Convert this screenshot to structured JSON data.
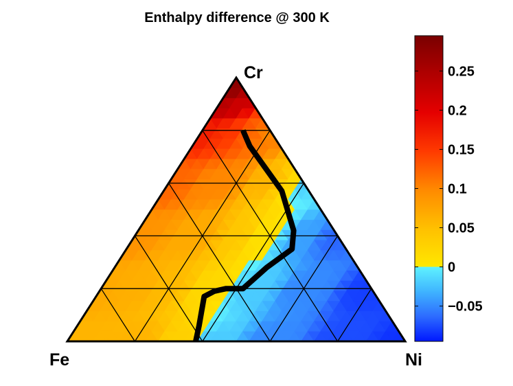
{
  "chart_data": {
    "type": "heatmap",
    "subtype": "ternary",
    "title": "Enthalpy difference @ 300 K",
    "vertices": {
      "left": "Fe",
      "right": "Ni",
      "top": "Cr"
    },
    "grid_fractions": [
      0.2,
      0.4,
      0.6,
      0.8
    ],
    "zero_contour": {
      "description": "thick black boundary where enthalpy difference = 0",
      "points_cr_ni": [
        [
          0.0,
          0.38
        ],
        [
          0.06,
          0.36
        ],
        [
          0.17,
          0.32
        ],
        [
          0.19,
          0.34
        ],
        [
          0.2,
          0.37
        ],
        [
          0.2,
          0.42
        ],
        [
          0.28,
          0.45
        ],
        [
          0.35,
          0.49
        ],
        [
          0.42,
          0.46
        ],
        [
          0.57,
          0.35
        ],
        [
          0.74,
          0.17
        ],
        [
          0.8,
          0.12
        ]
      ]
    },
    "field_samples_cr_ni": [
      [
        0.0,
        0.0,
        0.06
      ],
      [
        0.0,
        0.2,
        0.06
      ],
      [
        0.0,
        0.34,
        0.03
      ],
      [
        0.0,
        0.42,
        -0.02
      ],
      [
        0.0,
        0.6,
        -0.05
      ],
      [
        0.0,
        0.8,
        -0.075
      ],
      [
        0.0,
        1.0,
        -0.085
      ],
      [
        0.2,
        0.0,
        0.07
      ],
      [
        0.2,
        0.1,
        0.065
      ],
      [
        0.2,
        0.2,
        0.055
      ],
      [
        0.2,
        0.32,
        0.02
      ],
      [
        0.2,
        0.45,
        -0.02
      ],
      [
        0.2,
        0.6,
        -0.05
      ],
      [
        0.2,
        0.8,
        -0.08
      ],
      [
        0.4,
        0.0,
        0.09
      ],
      [
        0.4,
        0.2,
        0.07
      ],
      [
        0.4,
        0.3,
        0.04
      ],
      [
        0.4,
        0.38,
        0.01
      ],
      [
        0.4,
        0.5,
        -0.04
      ],
      [
        0.4,
        0.6,
        -0.065
      ],
      [
        0.6,
        0.0,
        0.12
      ],
      [
        0.6,
        0.15,
        0.1
      ],
      [
        0.6,
        0.3,
        0.06
      ],
      [
        0.6,
        0.36,
        0.02
      ],
      [
        0.6,
        0.4,
        -0.02
      ],
      [
        0.8,
        0.0,
        0.17
      ],
      [
        0.8,
        0.1,
        0.15
      ],
      [
        0.8,
        0.15,
        0.12
      ],
      [
        0.8,
        0.2,
        0.1
      ],
      [
        0.9,
        0.0,
        0.24
      ],
      [
        0.9,
        0.05,
        0.22
      ],
      [
        0.95,
        0.02,
        0.27
      ],
      [
        1.0,
        0.0,
        0.29
      ]
    ],
    "colorbar": {
      "min": -0.095,
      "max": 0.295,
      "ticks": [
        -0.05,
        0,
        0.05,
        0.1,
        0.15,
        0.2,
        0.25
      ],
      "tick_labels": [
        "−0.05",
        "0",
        "0.05",
        "0.1",
        "0.15",
        "0.2",
        "0.25"
      ],
      "negative_colors": [
        "#0018ff",
        "#2d6bff",
        "#3fb4ff",
        "#5ef2ff"
      ],
      "positive_colors": [
        "#ffe800",
        "#ffc000",
        "#ff8a00",
        "#ff3a00",
        "#e50000",
        "#b00000",
        "#7a0000"
      ]
    },
    "grid": true
  }
}
